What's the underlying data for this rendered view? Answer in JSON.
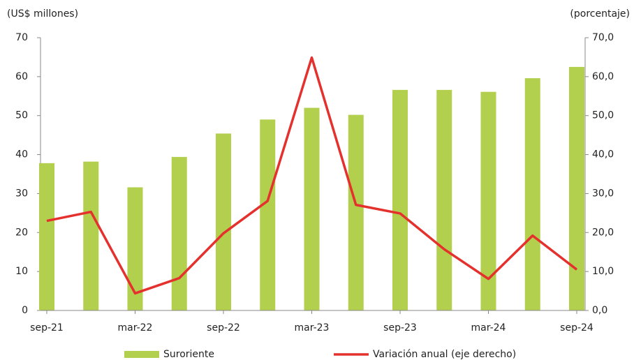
{
  "chart_data": {
    "type": "bar-line",
    "y_label": "(US$ millones)",
    "y2_label": "(porcentaje)",
    "categories": [
      "sep-21",
      null,
      "mar-22",
      null,
      "sep-22",
      null,
      "mar-23",
      null,
      "sep-23",
      null,
      "mar-24",
      null,
      "sep-24"
    ],
    "series": [
      {
        "name": "Suroriente",
        "type": "bar",
        "color": "#b3cf4e",
        "values": [
          37.8,
          38.2,
          31.6,
          39.4,
          45.4,
          49.0,
          52.0,
          50.2,
          56.6,
          56.6,
          56.1,
          59.6,
          62.5
        ]
      },
      {
        "name": "Variación anual (eje derecho)",
        "type": "line",
        "axis": "y2",
        "color": "#e4312e",
        "values": [
          23.0,
          25.3,
          4.4,
          8.3,
          19.8,
          28.1,
          64.9,
          27.1,
          24.9,
          15.7,
          8.1,
          19.2,
          10.5
        ]
      }
    ],
    "ylim": [
      0,
      70
    ],
    "yticks": [
      0,
      10,
      20,
      30,
      40,
      50,
      60,
      70
    ],
    "y2lim": [
      0,
      70
    ],
    "y2ticks": [
      {
        "value": 0,
        "label": "0,0"
      },
      {
        "value": 10,
        "label": "10,0"
      },
      {
        "value": 20,
        "label": "20,0"
      },
      {
        "value": 30,
        "label": "30,0"
      },
      {
        "value": 40,
        "label": "40,0"
      },
      {
        "value": 50,
        "label": "50,0"
      },
      {
        "value": 60,
        "label": "60,0"
      },
      {
        "value": 70,
        "label": "70,0"
      }
    ],
    "grid": false
  }
}
